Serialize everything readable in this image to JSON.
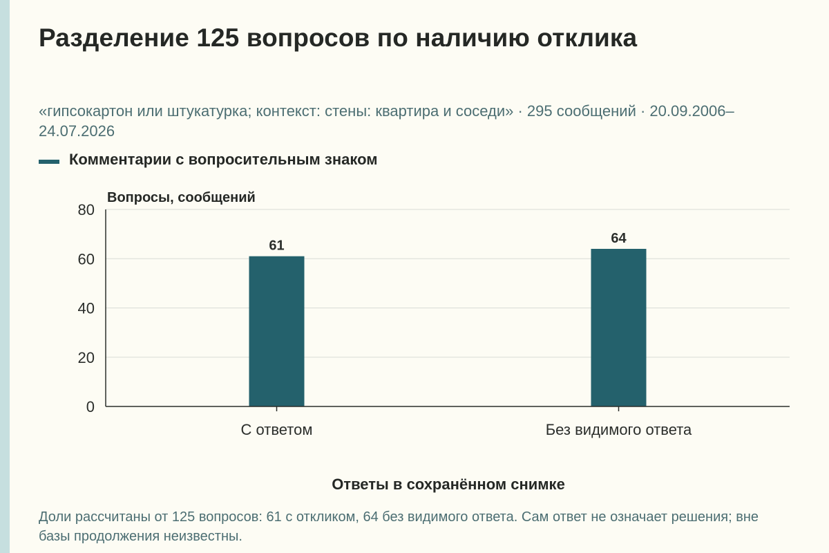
{
  "chart_data": {
    "type": "bar",
    "title": "Разделение 125 вопросов по наличию отклика",
    "subtitle": "«гипсокартон или штукатурка; контекст: стены: квартира и соседи» · 295 сообщений · 20.09.2006–24.07.2026",
    "categories": [
      "С ответом",
      "Без видимого ответа"
    ],
    "series": [
      {
        "name": "Комментарии с вопросительным знаком",
        "values": [
          61,
          64
        ]
      }
    ],
    "data_labels": [
      "61",
      "64"
    ],
    "xlabel": "Ответы в сохранённом снимке",
    "ylabel": "Вопросы, сообщений",
    "ylim": [
      0,
      80
    ],
    "yticks": [
      0,
      20,
      40,
      60,
      80
    ],
    "grid": true,
    "legend_position": "top-left",
    "footnote": "Доли рассчитаны от 125 вопросов: 61 с откликом, 64 без видимого ответа. Сам ответ не означает решения; вне базы продолжения неизвестны."
  },
  "colors": {
    "background": "#fdfcf4",
    "accent_stripe": "#c6dfdf",
    "bar": "#24616c",
    "grid": "#d9dbd6",
    "axis": "#2b2e2b",
    "muted_text": "#4c6e72"
  }
}
